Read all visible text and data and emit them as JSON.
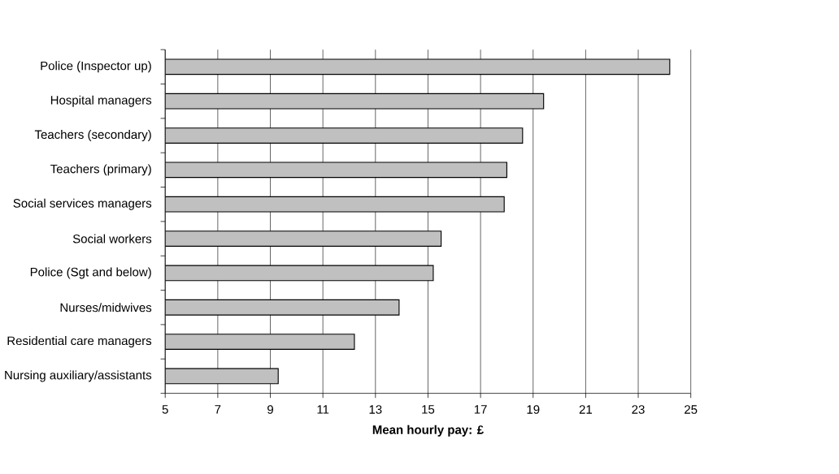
{
  "chart_data": {
    "type": "bar",
    "orientation": "horizontal",
    "xlabel": "Mean hourly pay: £",
    "categories": [
      "Police (Inspector up)",
      "Hospital managers",
      "Teachers (secondary)",
      "Teachers (primary)",
      "Social services managers",
      "Social workers",
      "Police (Sgt and below)",
      "Nurses/midwives",
      "Residential care managers",
      "Nursing auxiliary/assistants"
    ],
    "values": [
      24.2,
      19.4,
      18.6,
      18.0,
      17.9,
      15.5,
      15.2,
      13.9,
      12.2,
      9.3
    ],
    "color": "#c0c0c0",
    "xlim": [
      5,
      25
    ],
    "xticks": [
      5,
      7,
      9,
      11,
      13,
      15,
      17,
      19,
      21,
      23,
      25
    ],
    "grid": "x"
  }
}
